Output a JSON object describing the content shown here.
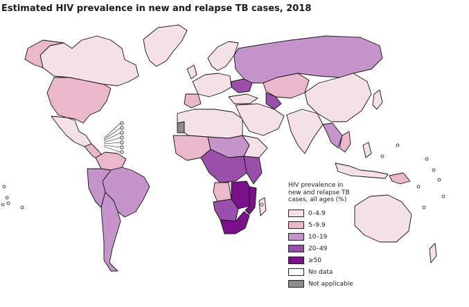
{
  "title": "Estimated HIV prevalence in new and relapse TB cases, 2018",
  "legend": {
    "title": "HIV prevalence in new and relapse TB cases, all ages (%)",
    "items": [
      {
        "label": "0–4.9",
        "color": "#f5e0e7"
      },
      {
        "label": "5–9.9",
        "color": "#ebb8cb"
      },
      {
        "label": "10–19",
        "color": "#c494cb"
      },
      {
        "label": "20–49",
        "color": "#9a50ab"
      },
      {
        "label": "≥50",
        "color": "#7b0f8c"
      },
      {
        "label": "No data",
        "color": "#ffffff"
      },
      {
        "label": "Not applicable",
        "color": "#8c8c8c"
      }
    ]
  }
}
